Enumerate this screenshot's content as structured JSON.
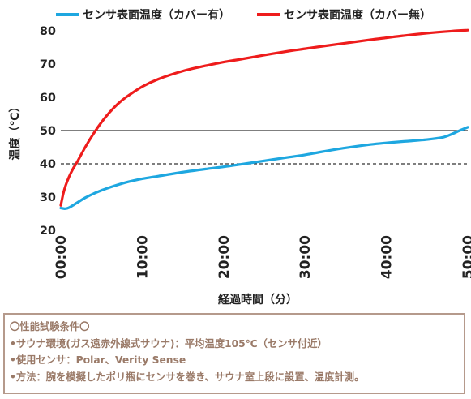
{
  "chart_data": {
    "type": "line",
    "x_unit": "min",
    "xlabel": "経過時間（分）",
    "ylabel": "温度（℃）",
    "xlim": [
      0,
      50
    ],
    "ylim": [
      20,
      80
    ],
    "x_ticks": [
      "00:00",
      "10:00",
      "20:00",
      "30:00",
      "40:00",
      "50:00"
    ],
    "y_ticks": [
      20,
      30,
      40,
      50,
      60,
      70,
      80
    ],
    "legend_position": "top",
    "grid": false,
    "reference_lines": [
      {
        "y": 50,
        "style": "solid",
        "color": "#333333"
      },
      {
        "y": 40,
        "style": "dashed",
        "color": "#333333"
      }
    ],
    "series": [
      {
        "name": "センサ表面温度（カバー有）",
        "color": "#1ea7e0",
        "x": [
          0,
          0.5,
          1,
          2,
          3,
          4,
          5,
          6,
          8,
          10,
          12,
          15,
          18,
          20,
          22,
          25,
          28,
          30,
          32,
          35,
          38,
          40,
          42,
          45,
          47,
          48,
          49,
          50
        ],
        "y": [
          26.7,
          26.5,
          26.8,
          28.3,
          29.8,
          31.0,
          32.0,
          32.9,
          34.4,
          35.5,
          36.3,
          37.5,
          38.5,
          39.1,
          39.8,
          40.9,
          42.0,
          42.7,
          43.6,
          44.8,
          45.8,
          46.3,
          46.7,
          47.3,
          48.0,
          48.9,
          50.0,
          51.0
        ]
      },
      {
        "name": "センサ表面温度（カバー無）",
        "color": "#ee1c1c",
        "x": [
          0,
          0.3,
          0.6,
          1,
          1.5,
          2,
          3,
          4,
          5,
          6,
          7,
          8,
          10,
          12,
          15,
          18,
          20,
          22,
          25,
          28,
          30,
          32,
          35,
          38,
          40,
          42,
          45,
          48,
          50
        ],
        "y": [
          27.5,
          31.0,
          33.5,
          36.0,
          38.5,
          40.5,
          45.0,
          49.0,
          52.5,
          55.5,
          58.0,
          60.0,
          63.2,
          65.5,
          67.9,
          69.6,
          70.6,
          71.4,
          72.7,
          73.9,
          74.6,
          75.3,
          76.3,
          77.3,
          77.9,
          78.5,
          79.3,
          79.9,
          80.2
        ]
      }
    ]
  },
  "conditions": {
    "title": "〇性能試験条件〇",
    "lines": [
      "•サウナ環境(ガス遠赤外線式サウナ)：平均温度105℃（センサ付近）",
      "•使用センサ：Polar、Verity Sense",
      "•方法：腕を模擬したポリ瓶にセンサを巻き、サウナ室上段に設置、温度計測。"
    ]
  }
}
